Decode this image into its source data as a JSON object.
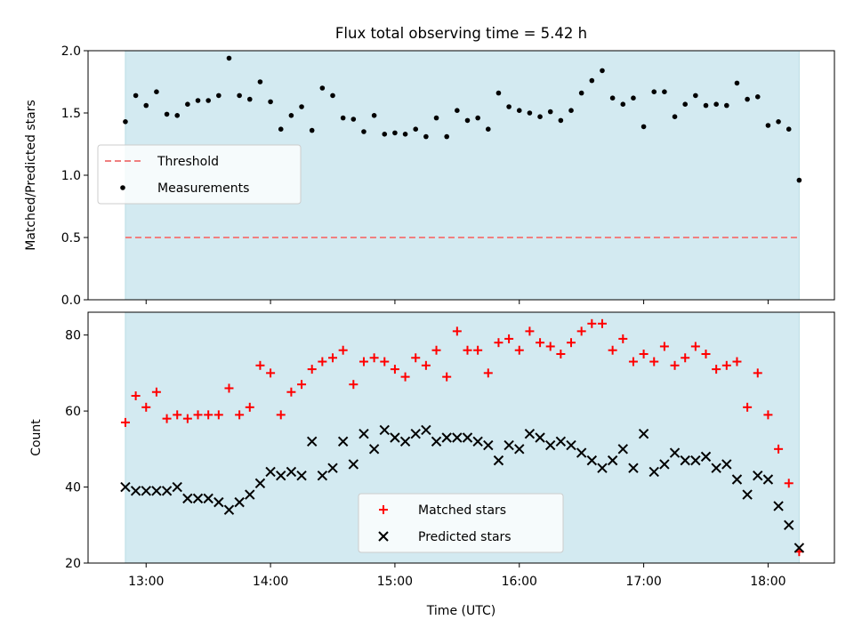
{
  "chart_data": [
    {
      "type": "scatter",
      "title": "Flux total observing time = 5.42 h",
      "ylabel": "Matched/Predicted stars",
      "xlabel": "",
      "x_range": [
        "12:32",
        "18:32"
      ],
      "ylim": [
        0,
        2.0
      ],
      "y_ticks": [
        "0.0",
        "0.5",
        "1.0",
        "1.5",
        "2.0"
      ],
      "shaded_span": [
        "12:50",
        "18:15"
      ],
      "shade_color": "#d3eaf1",
      "legend_position": "center-left",
      "threshold": {
        "name": "Threshold",
        "value": 0.5,
        "color": "#f08080"
      },
      "series": [
        {
          "name": "Measurements",
          "color": "#000000",
          "marker": "dot",
          "points": [
            [
              "12:50",
              1.43
            ],
            [
              "12:55",
              1.64
            ],
            [
              "13:00",
              1.56
            ],
            [
              "13:05",
              1.67
            ],
            [
              "13:10",
              1.49
            ],
            [
              "13:15",
              1.48
            ],
            [
              "13:20",
              1.57
            ],
            [
              "13:25",
              1.6
            ],
            [
              "13:30",
              1.6
            ],
            [
              "13:35",
              1.64
            ],
            [
              "13:40",
              1.94
            ],
            [
              "13:45",
              1.64
            ],
            [
              "13:50",
              1.61
            ],
            [
              "13:55",
              1.75
            ],
            [
              "14:00",
              1.59
            ],
            [
              "14:05",
              1.37
            ],
            [
              "14:10",
              1.48
            ],
            [
              "14:15",
              1.55
            ],
            [
              "14:20",
              1.36
            ],
            [
              "14:25",
              1.7
            ],
            [
              "14:30",
              1.64
            ],
            [
              "14:35",
              1.46
            ],
            [
              "14:40",
              1.45
            ],
            [
              "14:45",
              1.35
            ],
            [
              "14:50",
              1.48
            ],
            [
              "14:55",
              1.33
            ],
            [
              "15:00",
              1.34
            ],
            [
              "15:05",
              1.33
            ],
            [
              "15:10",
              1.37
            ],
            [
              "15:15",
              1.31
            ],
            [
              "15:20",
              1.46
            ],
            [
              "15:25",
              1.31
            ],
            [
              "15:30",
              1.52
            ],
            [
              "15:35",
              1.44
            ],
            [
              "15:40",
              1.46
            ],
            [
              "15:45",
              1.37
            ],
            [
              "15:50",
              1.66
            ],
            [
              "15:55",
              1.55
            ],
            [
              "16:00",
              1.52
            ],
            [
              "16:05",
              1.5
            ],
            [
              "16:10",
              1.47
            ],
            [
              "16:15",
              1.51
            ],
            [
              "16:20",
              1.44
            ],
            [
              "16:25",
              1.52
            ],
            [
              "16:30",
              1.66
            ],
            [
              "16:35",
              1.76
            ],
            [
              "16:40",
              1.84
            ],
            [
              "16:45",
              1.62
            ],
            [
              "16:50",
              1.57
            ],
            [
              "16:55",
              1.62
            ],
            [
              "17:00",
              1.39
            ],
            [
              "17:05",
              1.67
            ],
            [
              "17:10",
              1.67
            ],
            [
              "17:15",
              1.47
            ],
            [
              "17:20",
              1.57
            ],
            [
              "17:25",
              1.64
            ],
            [
              "17:30",
              1.56
            ],
            [
              "17:35",
              1.57
            ],
            [
              "17:40",
              1.56
            ],
            [
              "17:45",
              1.74
            ],
            [
              "17:50",
              1.61
            ],
            [
              "17:55",
              1.63
            ],
            [
              "18:00",
              1.4
            ],
            [
              "18:05",
              1.43
            ],
            [
              "18:10",
              1.37
            ],
            [
              "18:15",
              0.96
            ]
          ]
        }
      ]
    },
    {
      "type": "scatter",
      "title": "",
      "ylabel": "Count",
      "xlabel": "Time (UTC)",
      "x_range": [
        "12:32",
        "18:32"
      ],
      "x_ticks": [
        "13:00",
        "14:00",
        "15:00",
        "16:00",
        "17:00",
        "18:00"
      ],
      "ylim": [
        20,
        86
      ],
      "y_ticks": [
        "20",
        "40",
        "60",
        "80"
      ],
      "shaded_span": [
        "12:50",
        "18:15"
      ],
      "shade_color": "#d3eaf1",
      "legend_position": "lower-center",
      "series": [
        {
          "name": "Matched stars",
          "color": "#ff0000",
          "marker": "plus",
          "points": [
            [
              "12:50",
              57
            ],
            [
              "12:55",
              64
            ],
            [
              "13:00",
              61
            ],
            [
              "13:05",
              65
            ],
            [
              "13:10",
              58
            ],
            [
              "13:15",
              59
            ],
            [
              "13:20",
              58
            ],
            [
              "13:25",
              59
            ],
            [
              "13:30",
              59
            ],
            [
              "13:35",
              59
            ],
            [
              "13:40",
              66
            ],
            [
              "13:45",
              59
            ],
            [
              "13:50",
              61
            ],
            [
              "13:55",
              72
            ],
            [
              "14:00",
              70
            ],
            [
              "14:05",
              59
            ],
            [
              "14:10",
              65
            ],
            [
              "14:15",
              67
            ],
            [
              "14:20",
              71
            ],
            [
              "14:25",
              73
            ],
            [
              "14:30",
              74
            ],
            [
              "14:35",
              76
            ],
            [
              "14:40",
              67
            ],
            [
              "14:45",
              73
            ],
            [
              "14:50",
              74
            ],
            [
              "14:55",
              73
            ],
            [
              "15:00",
              71
            ],
            [
              "15:05",
              69
            ],
            [
              "15:10",
              74
            ],
            [
              "15:15",
              72
            ],
            [
              "15:20",
              76
            ],
            [
              "15:25",
              69
            ],
            [
              "15:30",
              81
            ],
            [
              "15:35",
              76
            ],
            [
              "15:40",
              76
            ],
            [
              "15:45",
              70
            ],
            [
              "15:50",
              78
            ],
            [
              "15:55",
              79
            ],
            [
              "16:00",
              76
            ],
            [
              "16:05",
              81
            ],
            [
              "16:10",
              78
            ],
            [
              "16:15",
              77
            ],
            [
              "16:20",
              75
            ],
            [
              "16:25",
              78
            ],
            [
              "16:30",
              81
            ],
            [
              "16:35",
              83
            ],
            [
              "16:40",
              83
            ],
            [
              "16:45",
              76
            ],
            [
              "16:50",
              79
            ],
            [
              "16:55",
              73
            ],
            [
              "17:00",
              75
            ],
            [
              "17:05",
              73
            ],
            [
              "17:10",
              77
            ],
            [
              "17:15",
              72
            ],
            [
              "17:20",
              74
            ],
            [
              "17:25",
              77
            ],
            [
              "17:30",
              75
            ],
            [
              "17:35",
              71
            ],
            [
              "17:40",
              72
            ],
            [
              "17:45",
              73
            ],
            [
              "17:50",
              61
            ],
            [
              "17:55",
              70
            ],
            [
              "18:00",
              59
            ],
            [
              "18:05",
              50
            ],
            [
              "18:10",
              41
            ],
            [
              "18:15",
              23
            ]
          ]
        },
        {
          "name": "Predicted stars",
          "color": "#000000",
          "marker": "x",
          "points": [
            [
              "12:50",
              40
            ],
            [
              "12:55",
              39
            ],
            [
              "13:00",
              39
            ],
            [
              "13:05",
              39
            ],
            [
              "13:10",
              39
            ],
            [
              "13:15",
              40
            ],
            [
              "13:20",
              37
            ],
            [
              "13:25",
              37
            ],
            [
              "13:30",
              37
            ],
            [
              "13:35",
              36
            ],
            [
              "13:40",
              34
            ],
            [
              "13:45",
              36
            ],
            [
              "13:50",
              38
            ],
            [
              "13:55",
              41
            ],
            [
              "14:00",
              44
            ],
            [
              "14:05",
              43
            ],
            [
              "14:10",
              44
            ],
            [
              "14:15",
              43
            ],
            [
              "14:20",
              52
            ],
            [
              "14:25",
              43
            ],
            [
              "14:30",
              45
            ],
            [
              "14:35",
              52
            ],
            [
              "14:40",
              46
            ],
            [
              "14:45",
              54
            ],
            [
              "14:50",
              50
            ],
            [
              "14:55",
              55
            ],
            [
              "15:00",
              53
            ],
            [
              "15:05",
              52
            ],
            [
              "15:10",
              54
            ],
            [
              "15:15",
              55
            ],
            [
              "15:20",
              52
            ],
            [
              "15:25",
              53
            ],
            [
              "15:30",
              53
            ],
            [
              "15:35",
              53
            ],
            [
              "15:40",
              52
            ],
            [
              "15:45",
              51
            ],
            [
              "15:50",
              47
            ],
            [
              "15:55",
              51
            ],
            [
              "16:00",
              50
            ],
            [
              "16:05",
              54
            ],
            [
              "16:10",
              53
            ],
            [
              "16:15",
              51
            ],
            [
              "16:20",
              52
            ],
            [
              "16:25",
              51
            ],
            [
              "16:30",
              49
            ],
            [
              "16:35",
              47
            ],
            [
              "16:40",
              45
            ],
            [
              "16:45",
              47
            ],
            [
              "16:50",
              50
            ],
            [
              "16:55",
              45
            ],
            [
              "17:00",
              54
            ],
            [
              "17:05",
              44
            ],
            [
              "17:10",
              46
            ],
            [
              "17:15",
              49
            ],
            [
              "17:20",
              47
            ],
            [
              "17:25",
              47
            ],
            [
              "17:30",
              48
            ],
            [
              "17:35",
              45
            ],
            [
              "17:40",
              46
            ],
            [
              "17:45",
              42
            ],
            [
              "17:50",
              38
            ],
            [
              "17:55",
              43
            ],
            [
              "18:00",
              42
            ],
            [
              "18:05",
              35
            ],
            [
              "18:10",
              30
            ],
            [
              "18:15",
              24
            ]
          ]
        }
      ]
    }
  ]
}
